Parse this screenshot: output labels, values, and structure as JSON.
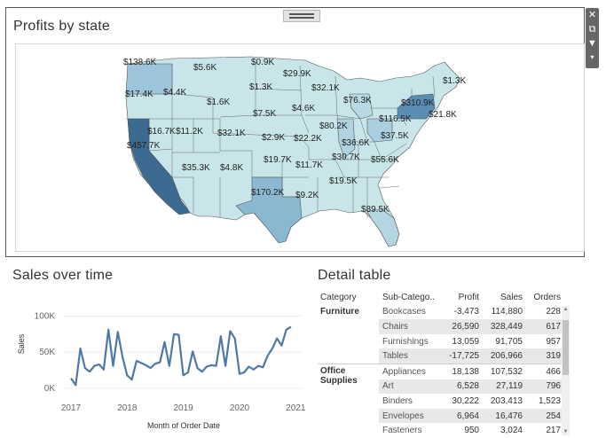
{
  "map_panel": {
    "title": "Profits by state",
    "labels": [
      {
        "state": "WA",
        "text": "$138.6K"
      },
      {
        "state": "OR",
        "text": "$17.4K"
      },
      {
        "state": "ID",
        "text": "$4.4K"
      },
      {
        "state": "MT",
        "text": "$5.6K"
      },
      {
        "state": "ND",
        "text": "$0.9K"
      },
      {
        "state": "SD",
        "text": "$1.3K"
      },
      {
        "state": "WY",
        "text": "$1.6K"
      },
      {
        "state": "NE",
        "text": "$7.5K"
      },
      {
        "state": "MN",
        "text": "$29.9K"
      },
      {
        "state": "WI",
        "text": "$32.1K"
      },
      {
        "state": "IA",
        "text": "$4.6K"
      },
      {
        "state": "MI",
        "text": "$76.3K"
      },
      {
        "state": "IL",
        "text": "$80.2K"
      },
      {
        "state": "IN",
        "text": "$36.6K"
      },
      {
        "state": "OH",
        "text": "$116.5K"
      },
      {
        "state": "NY",
        "text": "$310.9K"
      },
      {
        "state": "VT",
        "text": "$1.3K"
      },
      {
        "state": "CT",
        "text": "$21.8K"
      },
      {
        "state": "VA",
        "text": "$37.5K"
      },
      {
        "state": "NV",
        "text": "$16.7K"
      },
      {
        "state": "UT",
        "text": "$11.2K"
      },
      {
        "state": "CO",
        "text": "$32.1K"
      },
      {
        "state": "KS",
        "text": "$2.9K"
      },
      {
        "state": "MO",
        "text": "$22.2K"
      },
      {
        "state": "KY",
        "text": "$30.7K"
      },
      {
        "state": "NC",
        "text": "$55.6K"
      },
      {
        "state": "CA",
        "text": "$457.7K"
      },
      {
        "state": "AZ",
        "text": "$35.3K"
      },
      {
        "state": "NM",
        "text": "$4.8K"
      },
      {
        "state": "OK",
        "text": "$19.7K"
      },
      {
        "state": "AR",
        "text": "$11.7K"
      },
      {
        "state": "TN",
        "text": "$19.5K"
      },
      {
        "state": "TX",
        "text": "$170.2K"
      },
      {
        "state": "LA",
        "text": "$9.2K"
      },
      {
        "state": "FL",
        "text": "$89.5K"
      }
    ]
  },
  "toolbar": {
    "icons": [
      "close-icon",
      "popout-icon",
      "filter-icon",
      "menu-icon"
    ]
  },
  "sales_panel": {
    "title": "Sales over time",
    "ylabel": "Sales",
    "xlabel": "Month of Order Date",
    "yticks": [
      "100K",
      "50K",
      "0K"
    ],
    "xticks": [
      "2017",
      "2018",
      "2019",
      "2020",
      "2021"
    ]
  },
  "chart_data": {
    "type": "line",
    "title": "Sales over time",
    "xlabel": "Month of Order Date",
    "ylabel": "Sales",
    "ylim": [
      0,
      120000
    ],
    "x_start": "2017-01",
    "series": [
      {
        "name": "Sales",
        "values": [
          14000,
          4500,
          55000,
          28000,
          23000,
          31000,
          33000,
          26000,
          81000,
          31000,
          78000,
          44000,
          18000,
          12000,
          38000,
          35000,
          32000,
          28000,
          34000,
          36000,
          64000,
          31000,
          75000,
          74000,
          18000,
          22000,
          51000,
          28000,
          23000,
          30000,
          32000,
          31000,
          72000,
          31000,
          79000,
          69000,
          20000,
          22000,
          30000,
          26000,
          31000,
          29000,
          45000,
          55000,
          69000,
          59000,
          81000,
          85000
        ]
      }
    ],
    "grid": true,
    "color": "#4e79a7"
  },
  "detail_table": {
    "title": "Detail table",
    "headers": [
      "Category",
      "Sub-Catego..",
      "Profit",
      "Sales",
      "Orders"
    ],
    "groups": [
      {
        "category": "Furniture",
        "rows": [
          {
            "sub": "Bookcases",
            "profit": "-3,473",
            "sales": "114,880",
            "orders": "228"
          },
          {
            "sub": "Chairs",
            "profit": "26,590",
            "sales": "328,449",
            "orders": "617"
          },
          {
            "sub": "Furnishings",
            "profit": "13,059",
            "sales": "91,705",
            "orders": "957"
          },
          {
            "sub": "Tables",
            "profit": "-17,725",
            "sales": "206,966",
            "orders": "319"
          }
        ]
      },
      {
        "category": "Office Supplies",
        "rows": [
          {
            "sub": "Appliances",
            "profit": "18,138",
            "sales": "107,532",
            "orders": "466"
          },
          {
            "sub": "Art",
            "profit": "6,528",
            "sales": "27,119",
            "orders": "796"
          },
          {
            "sub": "Binders",
            "profit": "30,222",
            "sales": "203,413",
            "orders": "1,523"
          },
          {
            "sub": "Envelopes",
            "profit": "6,964",
            "sales": "16,476",
            "orders": "254"
          },
          {
            "sub": "Fasteners",
            "profit": "950",
            "sales": "3,024",
            "orders": "217"
          }
        ]
      }
    ]
  }
}
